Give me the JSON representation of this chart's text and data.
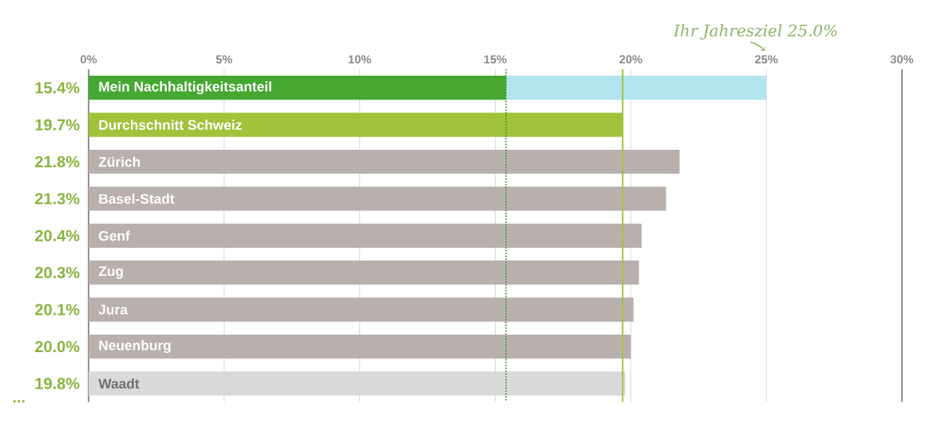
{
  "chart_data": {
    "type": "bar",
    "orientation": "horizontal",
    "stacked": true,
    "categories": [
      "Mein Nachhaltigkeitsanteil",
      "Durchschnitt Schweiz",
      "Zürich",
      "Basel-Stadt",
      "Genf",
      "Zug",
      "Jura",
      "Neuenburg",
      "Waadt"
    ],
    "series": [
      {
        "colors": [
          "#46a833",
          "#a2c23c",
          "#b9b0ad",
          "#b9b0ad",
          "#b9b0ad",
          "#b9b0ad",
          "#b9b0ad",
          "#b9b0ad",
          "#d9d9d9"
        ],
        "values": [
          15.4,
          19.7,
          21.8,
          21.3,
          20.4,
          20.3,
          20.1,
          20.0,
          19.8
        ],
        "value_labels": [
          "15.4%",
          "19.7%",
          "21.8%",
          "21.3%",
          "20.4%",
          "20.3%",
          "20.1%",
          "20.0%",
          "19.8%"
        ]
      },
      {
        "color": "#b3e5ef",
        "values": [
          9.6,
          null,
          null,
          null,
          null,
          null,
          null,
          null,
          null
        ]
      }
    ],
    "xlim": [
      0,
      30
    ],
    "xticks": [
      {
        "value": 0,
        "label": "0%"
      },
      {
        "value": 5,
        "label": "5%"
      },
      {
        "value": 10,
        "label": "10%"
      },
      {
        "value": 15,
        "label": "15%"
      },
      {
        "value": 20,
        "label": "20%"
      },
      {
        "value": 25,
        "label": "25%"
      },
      {
        "value": 30,
        "label": "30%"
      }
    ],
    "grid": "x",
    "ref_lines": [
      {
        "axis": "x",
        "value": 15.4,
        "color": "#3d9a2e",
        "line_style": "dotted"
      },
      {
        "axis": "x",
        "value": 19.7,
        "color": "#a2c23c",
        "line_style": "solid"
      }
    ],
    "annotations": [
      "Ihr Jahresziel 25.0%",
      "..."
    ]
  }
}
